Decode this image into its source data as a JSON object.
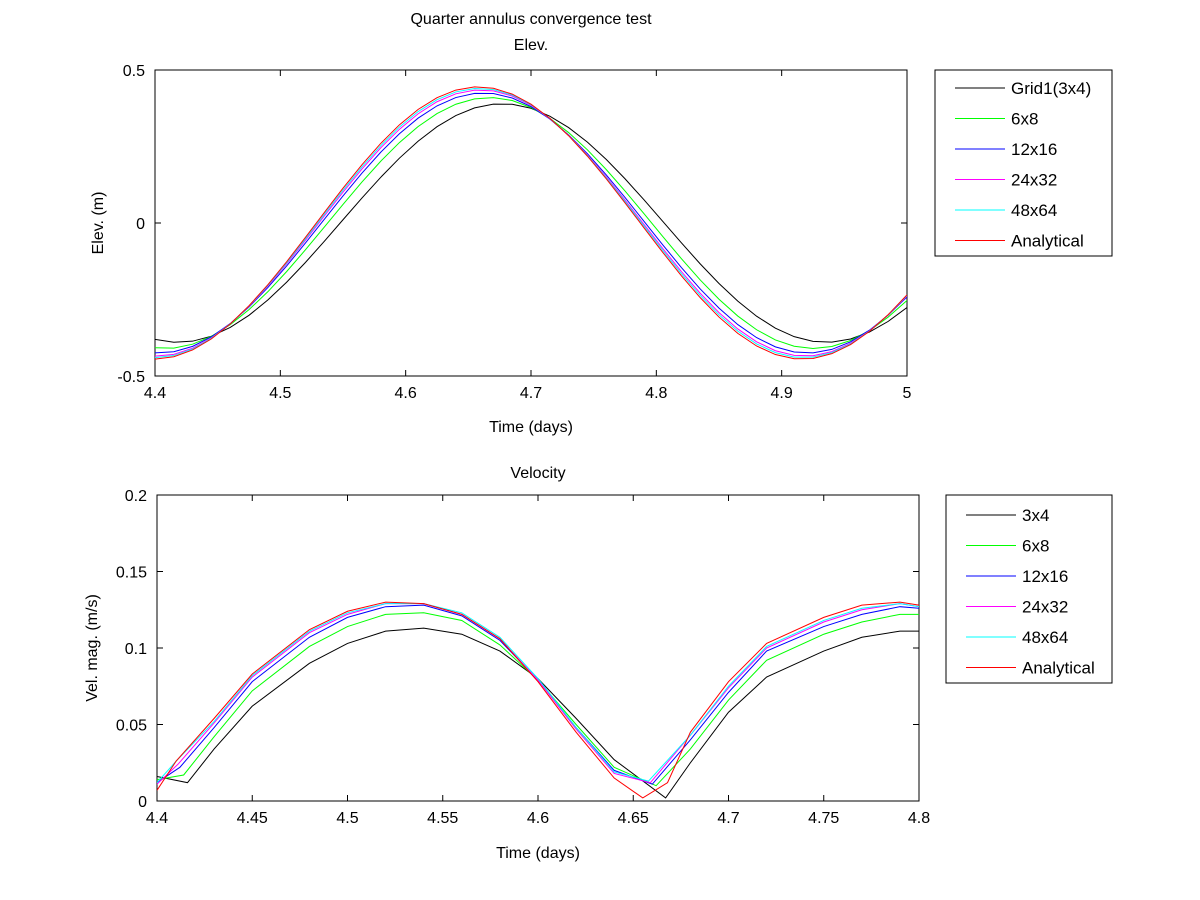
{
  "figure": {
    "suptitle": "Quarter annulus convergence test"
  },
  "chart_data": [
    {
      "type": "line",
      "title": "Elev.",
      "xlabel": "Time (days)",
      "ylabel": "Elev. (m)",
      "xlim": [
        4.4,
        5.0
      ],
      "ylim": [
        -0.5,
        0.5
      ],
      "xticks": [
        4.4,
        4.5,
        4.6,
        4.7,
        4.8,
        4.9,
        5.0
      ],
      "xtick_labels": [
        "4.4",
        "4.5",
        "4.6",
        "4.7",
        "4.8",
        "4.9",
        "5"
      ],
      "yticks": [
        -0.5,
        0,
        0.5
      ],
      "ytick_labels": [
        "-0.5",
        "0",
        "0.5"
      ],
      "legend_position": "outside-right",
      "series": [
        {
          "name": "Grid1(3x4)",
          "color": "#000000",
          "amplitude": 0.39,
          "peak_time": 4.677,
          "period": 0.517
        },
        {
          "name": "6x8",
          "color": "#00ff00",
          "amplitude": 0.41,
          "peak_time": 4.667,
          "period": 0.517
        },
        {
          "name": "12x16",
          "color": "#0000ff",
          "amplitude": 0.425,
          "peak_time": 4.662,
          "period": 0.517
        },
        {
          "name": "24x32",
          "color": "#ff00ff",
          "amplitude": 0.435,
          "peak_time": 4.66,
          "period": 0.517
        },
        {
          "name": "48x64",
          "color": "#00ffff",
          "amplitude": 0.44,
          "peak_time": 4.659,
          "period": 0.517
        },
        {
          "name": "Analytical",
          "color": "#ff0000",
          "amplitude": 0.445,
          "peak_time": 4.658,
          "period": 0.517
        }
      ]
    },
    {
      "type": "line",
      "title": "Velocity",
      "xlabel": "Time (days)",
      "ylabel": "Vel. mag. (m/s)",
      "xlim": [
        4.4,
        4.8
      ],
      "ylim": [
        0,
        0.2
      ],
      "xticks": [
        4.4,
        4.45,
        4.5,
        4.55,
        4.6,
        4.65,
        4.7,
        4.75,
        4.8
      ],
      "xtick_labels": [
        "4.4",
        "4.45",
        "4.5",
        "4.55",
        "4.6",
        "4.65",
        "4.7",
        "4.75",
        "4.8"
      ],
      "yticks": [
        0,
        0.05,
        0.1,
        0.15,
        0.2
      ],
      "ytick_labels": [
        "0",
        "0.05",
        "0.1",
        "0.15",
        "0.2"
      ],
      "legend_position": "outside-right",
      "series": [
        {
          "name": "3x4",
          "color": "#000000",
          "x": [
            4.4,
            4.416,
            4.43,
            4.45,
            4.48,
            4.5,
            4.52,
            4.54,
            4.56,
            4.58,
            4.6,
            4.62,
            4.64,
            4.667,
            4.68,
            4.7,
            4.72,
            4.75,
            4.77,
            4.79,
            4.8
          ],
          "y": [
            0.016,
            0.012,
            0.034,
            0.062,
            0.09,
            0.103,
            0.111,
            0.113,
            0.109,
            0.098,
            0.08,
            0.054,
            0.027,
            0.002,
            0.025,
            0.058,
            0.081,
            0.098,
            0.107,
            0.111,
            0.111
          ]
        },
        {
          "name": "6x8",
          "color": "#00ff00",
          "x": [
            4.4,
            4.414,
            4.43,
            4.45,
            4.48,
            4.5,
            4.52,
            4.54,
            4.56,
            4.58,
            4.6,
            4.62,
            4.64,
            4.662,
            4.68,
            4.7,
            4.72,
            4.75,
            4.77,
            4.79,
            4.8
          ],
          "y": [
            0.014,
            0.017,
            0.042,
            0.072,
            0.101,
            0.114,
            0.122,
            0.123,
            0.118,
            0.102,
            0.079,
            0.05,
            0.022,
            0.01,
            0.034,
            0.066,
            0.092,
            0.109,
            0.117,
            0.122,
            0.122
          ]
        },
        {
          "name": "12x16",
          "color": "#0000ff",
          "x": [
            4.4,
            4.412,
            4.43,
            4.45,
            4.48,
            4.5,
            4.52,
            4.54,
            4.56,
            4.58,
            4.6,
            4.62,
            4.64,
            4.66,
            4.68,
            4.7,
            4.72,
            4.75,
            4.77,
            4.79,
            4.8
          ],
          "y": [
            0.012,
            0.022,
            0.048,
            0.078,
            0.107,
            0.12,
            0.127,
            0.128,
            0.121,
            0.105,
            0.079,
            0.048,
            0.02,
            0.011,
            0.04,
            0.071,
            0.098,
            0.114,
            0.122,
            0.127,
            0.126
          ]
        },
        {
          "name": "24x32",
          "color": "#ff00ff",
          "x": [
            4.4,
            4.411,
            4.43,
            4.45,
            4.48,
            4.5,
            4.52,
            4.54,
            4.56,
            4.58,
            4.6,
            4.62,
            4.64,
            4.659,
            4.68,
            4.7,
            4.72,
            4.75,
            4.77,
            4.79,
            4.8
          ],
          "y": [
            0.011,
            0.024,
            0.051,
            0.081,
            0.11,
            0.122,
            0.129,
            0.129,
            0.122,
            0.106,
            0.079,
            0.047,
            0.018,
            0.012,
            0.043,
            0.074,
            0.1,
            0.117,
            0.125,
            0.129,
            0.127
          ]
        },
        {
          "name": "48x64",
          "color": "#00ffff",
          "x": [
            4.4,
            4.41,
            4.43,
            4.45,
            4.48,
            4.5,
            4.52,
            4.54,
            4.56,
            4.58,
            4.6,
            4.62,
            4.64,
            4.658,
            4.68,
            4.7,
            4.72,
            4.75,
            4.77,
            4.79,
            4.8
          ],
          "y": [
            0.012,
            0.026,
            0.052,
            0.082,
            0.111,
            0.123,
            0.129,
            0.129,
            0.123,
            0.107,
            0.08,
            0.048,
            0.019,
            0.013,
            0.043,
            0.075,
            0.101,
            0.118,
            0.126,
            0.129,
            0.127
          ]
        },
        {
          "name": "Analytical",
          "color": "#ff0000",
          "x": [
            4.4,
            4.41,
            4.43,
            4.45,
            4.48,
            4.5,
            4.52,
            4.54,
            4.56,
            4.58,
            4.6,
            4.62,
            4.64,
            4.655,
            4.668,
            4.68,
            4.7,
            4.72,
            4.75,
            4.77,
            4.79,
            4.8
          ],
          "y": [
            0.007,
            0.026,
            0.054,
            0.083,
            0.112,
            0.124,
            0.13,
            0.129,
            0.122,
            0.106,
            0.078,
            0.045,
            0.015,
            0.002,
            0.012,
            0.045,
            0.078,
            0.103,
            0.12,
            0.128,
            0.13,
            0.128
          ]
        }
      ]
    }
  ]
}
